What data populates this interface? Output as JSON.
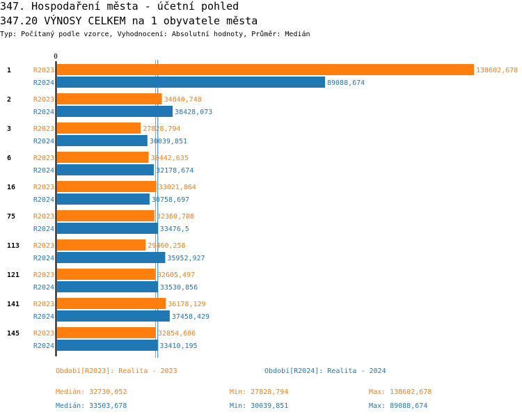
{
  "title": "347. Hospodaření města - účetní pohled",
  "subtitle": "347.20 VÝNOSY CELKEM na 1 obyvatele města",
  "info": "Typ: Počítaný podle vzorce, Vyhodnocení: Absolutní hodnoty, Průměr: Medián",
  "colors": {
    "R2023": "#ff7f0e",
    "R2024": "#1f77b4"
  },
  "chart_data": {
    "type": "bar",
    "orientation": "horizontal",
    "x_tick_labels": [
      "0"
    ],
    "xlim": [
      0,
      138602.678
    ],
    "categories": [
      "1",
      "2",
      "3",
      "6",
      "16",
      "75",
      "113",
      "121",
      "141",
      "145"
    ],
    "series": [
      {
        "name": "R2023",
        "values": [
          138602.678,
          34840.748,
          27828.794,
          30442.635,
          33021.864,
          32360.708,
          29460.258,
          32605.497,
          36178.129,
          32854.606
        ],
        "labels": [
          "138602,678",
          "34840,748",
          "27828,794",
          "30442,635",
          "33021,864",
          "32360,708",
          "29460,258",
          "32605,497",
          "36178,129",
          "32854,606"
        ]
      },
      {
        "name": "R2024",
        "values": [
          89088.674,
          38428.073,
          30039.851,
          32178.674,
          30758.697,
          33476.5,
          35952.927,
          33530.856,
          37458.429,
          33410.195
        ],
        "labels": [
          "89088,674",
          "38428,073",
          "30039,851",
          "32178,674",
          "30758,697",
          "33476,5",
          "35952,927",
          "33530,856",
          "37458,429",
          "33410,195"
        ]
      }
    ],
    "median_lines": {
      "R2023": 32730.052,
      "R2024": 33503.678
    }
  },
  "footer": {
    "legend_r2023": "Období[R2023]: Realita - 2023",
    "legend_r2024": "Období[R2024]: Realita - 2024",
    "r2023": {
      "median": "Medián: 32730,052",
      "min": "Min: 27828,794",
      "max": "Max: 138602,678"
    },
    "r2024": {
      "median": "Medián: 33503,678",
      "min": "Min: 30039,851",
      "max": "Max: 89088,674"
    }
  }
}
